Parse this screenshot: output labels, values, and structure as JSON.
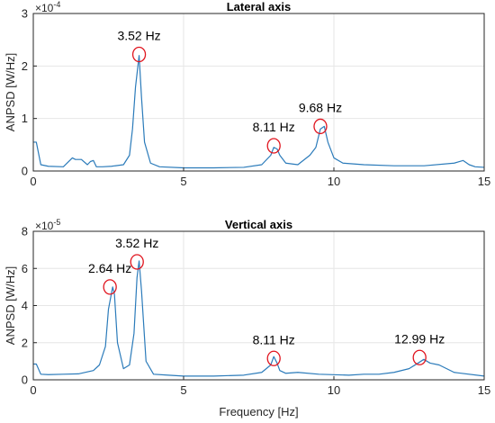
{
  "chart_data": [
    {
      "type": "line",
      "title": "Lateral axis",
      "xlabel": "",
      "ylabel": "ANPSD [W/Hz]",
      "xlim": [
        0,
        15
      ],
      "ylim": [
        0,
        3
      ],
      "y_multiplier": {
        "base": "×10",
        "exp": "-4"
      },
      "xticks": [
        "0",
        "5",
        "10",
        "15"
      ],
      "yticks": [
        "0",
        "1",
        "2",
        "3"
      ],
      "grid": true,
      "color": "#2b7bba",
      "highlight_color": "#e0141e",
      "x": [
        0,
        0.1,
        0.25,
        0.5,
        1.0,
        1.3,
        1.4,
        1.6,
        1.8,
        1.9,
        2.0,
        2.1,
        2.3,
        2.6,
        3.0,
        3.2,
        3.3,
        3.4,
        3.52,
        3.6,
        3.7,
        3.9,
        4.2,
        5.0,
        6.0,
        7.0,
        7.6,
        7.9,
        8.0,
        8.11,
        8.2,
        8.4,
        8.8,
        9.2,
        9.4,
        9.55,
        9.68,
        9.8,
        10.0,
        10.3,
        11.0,
        12.0,
        13.0,
        14.0,
        14.3,
        14.5,
        14.7,
        15.0
      ],
      "y": [
        0.55,
        0.55,
        0.12,
        0.09,
        0.08,
        0.25,
        0.22,
        0.22,
        0.12,
        0.18,
        0.2,
        0.08,
        0.08,
        0.09,
        0.12,
        0.3,
        0.8,
        1.6,
        2.2,
        1.4,
        0.55,
        0.15,
        0.08,
        0.06,
        0.06,
        0.07,
        0.12,
        0.3,
        0.45,
        0.42,
        0.3,
        0.15,
        0.12,
        0.3,
        0.45,
        0.8,
        0.85,
        0.55,
        0.25,
        0.15,
        0.12,
        0.1,
        0.1,
        0.15,
        0.2,
        0.12,
        0.08,
        0.07
      ],
      "annotations": [
        {
          "label": "3.52 Hz",
          "x": 3.52,
          "y": 2.22
        },
        {
          "label": "8.11 Hz",
          "x": 8.0,
          "y": 0.48
        },
        {
          "label": "9.68 Hz",
          "x": 9.55,
          "y": 0.85
        }
      ]
    },
    {
      "type": "line",
      "title": "Vertical axis",
      "xlabel": "Frequency [Hz]",
      "ylabel": "ANPSD [W/Hz]",
      "xlim": [
        0,
        15
      ],
      "ylim": [
        0,
        8
      ],
      "y_multiplier": {
        "base": "×10",
        "exp": "-5"
      },
      "xticks": [
        "0",
        "5",
        "10",
        "15"
      ],
      "yticks": [
        "0",
        "2",
        "4",
        "6",
        "8"
      ],
      "grid": true,
      "color": "#2b7bba",
      "highlight_color": "#e0141e",
      "x": [
        0,
        0.1,
        0.25,
        0.5,
        1.0,
        1.5,
        2.0,
        2.2,
        2.4,
        2.5,
        2.64,
        2.7,
        2.8,
        3.0,
        3.2,
        3.35,
        3.45,
        3.52,
        3.6,
        3.75,
        4.0,
        4.5,
        5.0,
        6.0,
        7.0,
        7.6,
        7.9,
        8.0,
        8.11,
        8.2,
        8.4,
        8.8,
        9.5,
        10.5,
        11.0,
        11.5,
        12.0,
        12.5,
        12.8,
        12.99,
        13.2,
        13.5,
        14.0,
        15.0
      ],
      "y": [
        0.85,
        0.85,
        0.3,
        0.28,
        0.3,
        0.32,
        0.5,
        0.8,
        1.8,
        3.8,
        5.0,
        4.6,
        2.0,
        0.6,
        0.8,
        2.5,
        5.5,
        6.4,
        4.8,
        1.0,
        0.3,
        0.25,
        0.2,
        0.2,
        0.25,
        0.4,
        0.8,
        1.25,
        0.9,
        0.5,
        0.35,
        0.4,
        0.3,
        0.25,
        0.3,
        0.3,
        0.4,
        0.6,
        0.9,
        1.1,
        0.9,
        0.8,
        0.4,
        0.2
      ],
      "annotations": [
        {
          "label": "2.64 Hz",
          "x": 2.55,
          "y": 5.0
        },
        {
          "label": "3.52 Hz",
          "x": 3.45,
          "y": 6.35
        },
        {
          "label": "8.11 Hz",
          "x": 8.0,
          "y": 1.15
        },
        {
          "label": "12.99 Hz",
          "x": 12.85,
          "y": 1.2
        }
      ]
    }
  ]
}
